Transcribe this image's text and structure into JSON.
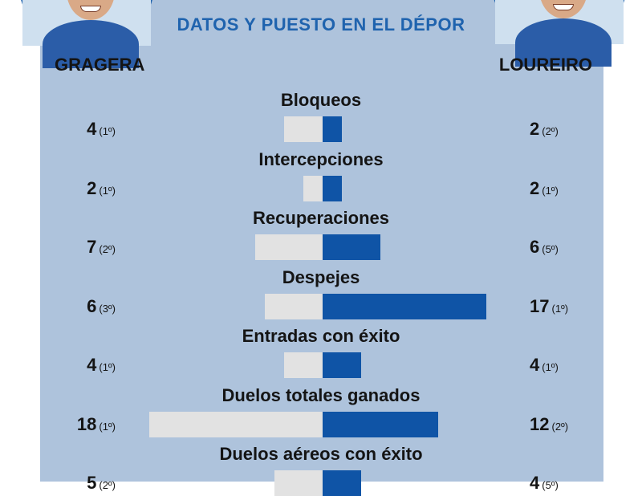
{
  "header": {
    "title": "DATOS Y PUESTO EN EL DÉPOR",
    "player_left": "GRAGERA",
    "player_right": "LOUREIRO"
  },
  "colors": {
    "panel": "#aec3dc",
    "bar_left": "#e2e2e2",
    "bar_right": "#0f54a6",
    "accent": "#1f63ae"
  },
  "chart_data": {
    "type": "bar",
    "orientation": "horizontal-diverging",
    "series": [
      {
        "name": "GRAGERA",
        "values": [
          4,
          2,
          7,
          6,
          4,
          18,
          5
        ],
        "ranks": [
          "(1º)",
          "(1º)",
          "(2º)",
          "(3º)",
          "(1º)",
          "(1º)",
          "(2º)"
        ]
      },
      {
        "name": "LOUREIRO",
        "values": [
          2,
          2,
          6,
          17,
          4,
          12,
          4
        ],
        "ranks": [
          "(2º)",
          "(1º)",
          "(5º)",
          "(1º)",
          "(1º)",
          "(2º)",
          "(5º)"
        ]
      }
    ],
    "categories": [
      "Bloqueos",
      "Intercepciones",
      "Recuperaciones",
      "Despejes",
      "Entradas con éxito",
      "Duelos totales ganados",
      "Duelos aéreos con éxito"
    ],
    "xlim": [
      0,
      18
    ]
  }
}
